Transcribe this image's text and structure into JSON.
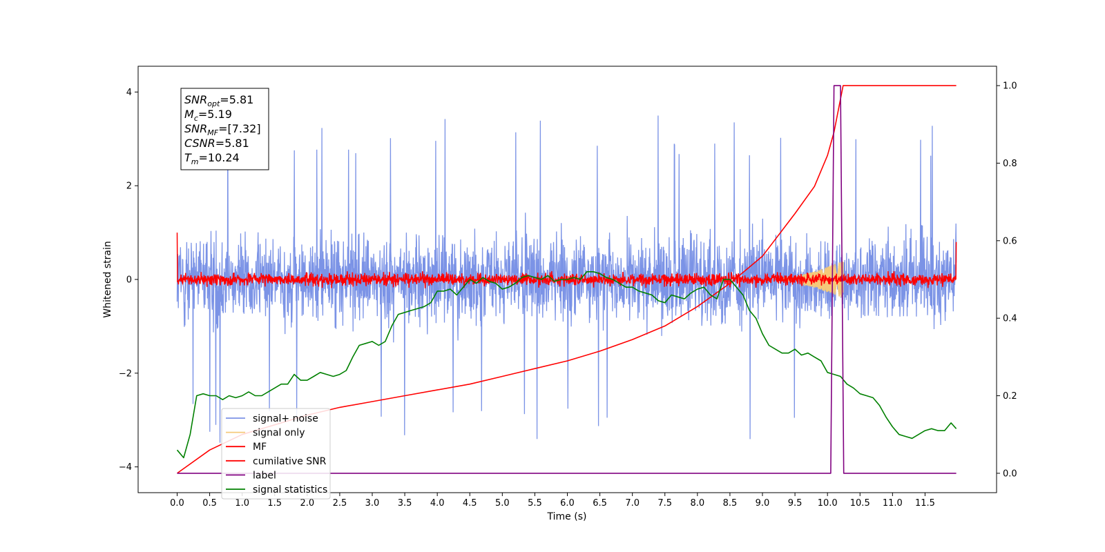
{
  "chart_data": {
    "type": "line",
    "title": "",
    "xlabel": "Time (s)",
    "ylabel": "Whitened strain",
    "xlim": [
      -0.6,
      12.6
    ],
    "ylim": [
      -4.55,
      4.55
    ],
    "y2lim": [
      -0.05,
      1.05
    ],
    "grid": false,
    "legend_position": "lower-left",
    "x_ticks": [
      "0.0",
      "0.5",
      "1.0",
      "1.5",
      "2.0",
      "2.5",
      "3.0",
      "3.5",
      "4.0",
      "4.5",
      "5.0",
      "5.5",
      "6.0",
      "6.5",
      "7.0",
      "7.5",
      "8.0",
      "8.5",
      "9.0",
      "9.5",
      "10.0",
      "10.5",
      "11.0",
      "11.5"
    ],
    "y_ticks": [
      "4",
      "2",
      "0",
      "−2",
      "−4"
    ],
    "y2_ticks": [
      "1.0",
      "0.8",
      "0.6",
      "0.4",
      "0.2",
      "0.0"
    ],
    "annotation": [
      {
        "base": "SNR",
        "sub": "opt",
        "value": "=5.81"
      },
      {
        "base": "M",
        "sub": "c",
        "value": "=5.19"
      },
      {
        "base": "SNR",
        "sub": "MF",
        "value": "=[7.32]"
      },
      {
        "base": "CSNR",
        "sub": "",
        "value": "=5.81"
      },
      {
        "base": "T",
        "sub": "m",
        "value": "=10.24"
      }
    ],
    "series": [
      {
        "name": "signal+ noise",
        "color": "#7b93e6",
        "axis": "left",
        "kind": "noise",
        "description_values": {
          "amplitude_typical": 1.0,
          "peak_max": 4.1,
          "peak_min": -3.7
        }
      },
      {
        "name": "signal only",
        "color": "#f5c97a",
        "axis": "left",
        "kind": "chirp",
        "x_range": [
          9.2,
          10.24
        ],
        "peak_amplitude": 0.4
      },
      {
        "name": "MF",
        "color": "#ff0000",
        "axis": "left",
        "kind": "mf",
        "amplitude_typical": 0.15
      },
      {
        "name": "cumilative SNR",
        "color": "#ff0000",
        "axis": "right",
        "x": [
          0.0,
          0.5,
          1.0,
          1.5,
          2.0,
          2.5,
          3.0,
          3.5,
          4.0,
          4.5,
          5.0,
          5.5,
          6.0,
          6.5,
          7.0,
          7.5,
          8.0,
          8.5,
          9.0,
          9.5,
          9.8,
          10.0,
          10.1,
          10.24,
          11.0,
          11.5,
          11.98
        ],
        "values": [
          0.0,
          0.06,
          0.1,
          0.125,
          0.15,
          0.17,
          0.185,
          0.2,
          0.215,
          0.23,
          0.25,
          0.27,
          0.29,
          0.315,
          0.345,
          0.38,
          0.43,
          0.49,
          0.56,
          0.67,
          0.74,
          0.82,
          0.88,
          1.0,
          1.0,
          1.0,
          1.0
        ]
      },
      {
        "name": "label",
        "color": "#800080",
        "axis": "right",
        "x": [
          0.0,
          10.05,
          10.1,
          10.2,
          10.25,
          11.98
        ],
        "values": [
          0.0,
          0.0,
          1.0,
          1.0,
          0.0,
          0.0
        ]
      },
      {
        "name": "signal statistics",
        "color": "#008000",
        "axis": "right",
        "x": [
          0.0,
          0.1,
          0.2,
          0.3,
          0.4,
          0.5,
          0.6,
          0.7,
          0.8,
          0.9,
          1.0,
          1.1,
          1.2,
          1.3,
          1.4,
          1.5,
          1.6,
          1.7,
          1.8,
          1.9,
          2.0,
          2.1,
          2.2,
          2.3,
          2.4,
          2.5,
          2.6,
          2.7,
          2.8,
          2.9,
          3.0,
          3.1,
          3.2,
          3.3,
          3.4,
          3.5,
          3.6,
          3.7,
          3.8,
          3.9,
          4.0,
          4.1,
          4.2,
          4.3,
          4.4,
          4.5,
          4.6,
          4.7,
          4.8,
          4.9,
          5.0,
          5.1,
          5.2,
          5.3,
          5.4,
          5.5,
          5.6,
          5.7,
          5.8,
          5.9,
          6.0,
          6.1,
          6.2,
          6.3,
          6.4,
          6.5,
          6.6,
          6.7,
          6.8,
          6.9,
          7.0,
          7.1,
          7.2,
          7.3,
          7.4,
          7.5,
          7.6,
          7.7,
          7.8,
          7.9,
          8.0,
          8.1,
          8.2,
          8.3,
          8.4,
          8.5,
          8.6,
          8.7,
          8.8,
          8.9,
          9.0,
          9.1,
          9.2,
          9.3,
          9.4,
          9.5,
          9.6,
          9.7,
          9.8,
          9.9,
          10.0,
          10.1,
          10.2,
          10.3,
          10.4,
          10.5,
          10.6,
          10.7,
          10.8,
          10.9,
          11.0,
          11.1,
          11.2,
          11.3,
          11.4,
          11.5,
          11.6,
          11.7,
          11.8,
          11.9,
          11.98
        ],
        "values": [
          0.06,
          0.04,
          0.1,
          0.2,
          0.205,
          0.2,
          0.2,
          0.19,
          0.2,
          0.195,
          0.2,
          0.21,
          0.2,
          0.2,
          0.21,
          0.22,
          0.23,
          0.23,
          0.255,
          0.24,
          0.24,
          0.25,
          0.26,
          0.255,
          0.25,
          0.255,
          0.265,
          0.3,
          0.33,
          0.335,
          0.34,
          0.33,
          0.34,
          0.38,
          0.41,
          0.415,
          0.42,
          0.425,
          0.43,
          0.44,
          0.47,
          0.47,
          0.475,
          0.46,
          0.48,
          0.5,
          0.49,
          0.505,
          0.495,
          0.49,
          0.475,
          0.48,
          0.49,
          0.505,
          0.51,
          0.505,
          0.5,
          0.51,
          0.495,
          0.5,
          0.5,
          0.505,
          0.5,
          0.52,
          0.52,
          0.515,
          0.505,
          0.5,
          0.49,
          0.48,
          0.48,
          0.47,
          0.465,
          0.46,
          0.445,
          0.44,
          0.46,
          0.455,
          0.45,
          0.465,
          0.475,
          0.48,
          0.46,
          0.45,
          0.5,
          0.5,
          0.48,
          0.46,
          0.42,
          0.4,
          0.36,
          0.33,
          0.32,
          0.31,
          0.31,
          0.32,
          0.305,
          0.31,
          0.3,
          0.29,
          0.26,
          0.255,
          0.25,
          0.23,
          0.22,
          0.205,
          0.2,
          0.195,
          0.175,
          0.145,
          0.12,
          0.1,
          0.095,
          0.09,
          0.1,
          0.11,
          0.115,
          0.11,
          0.11,
          0.13,
          0.115
        ]
      }
    ]
  }
}
